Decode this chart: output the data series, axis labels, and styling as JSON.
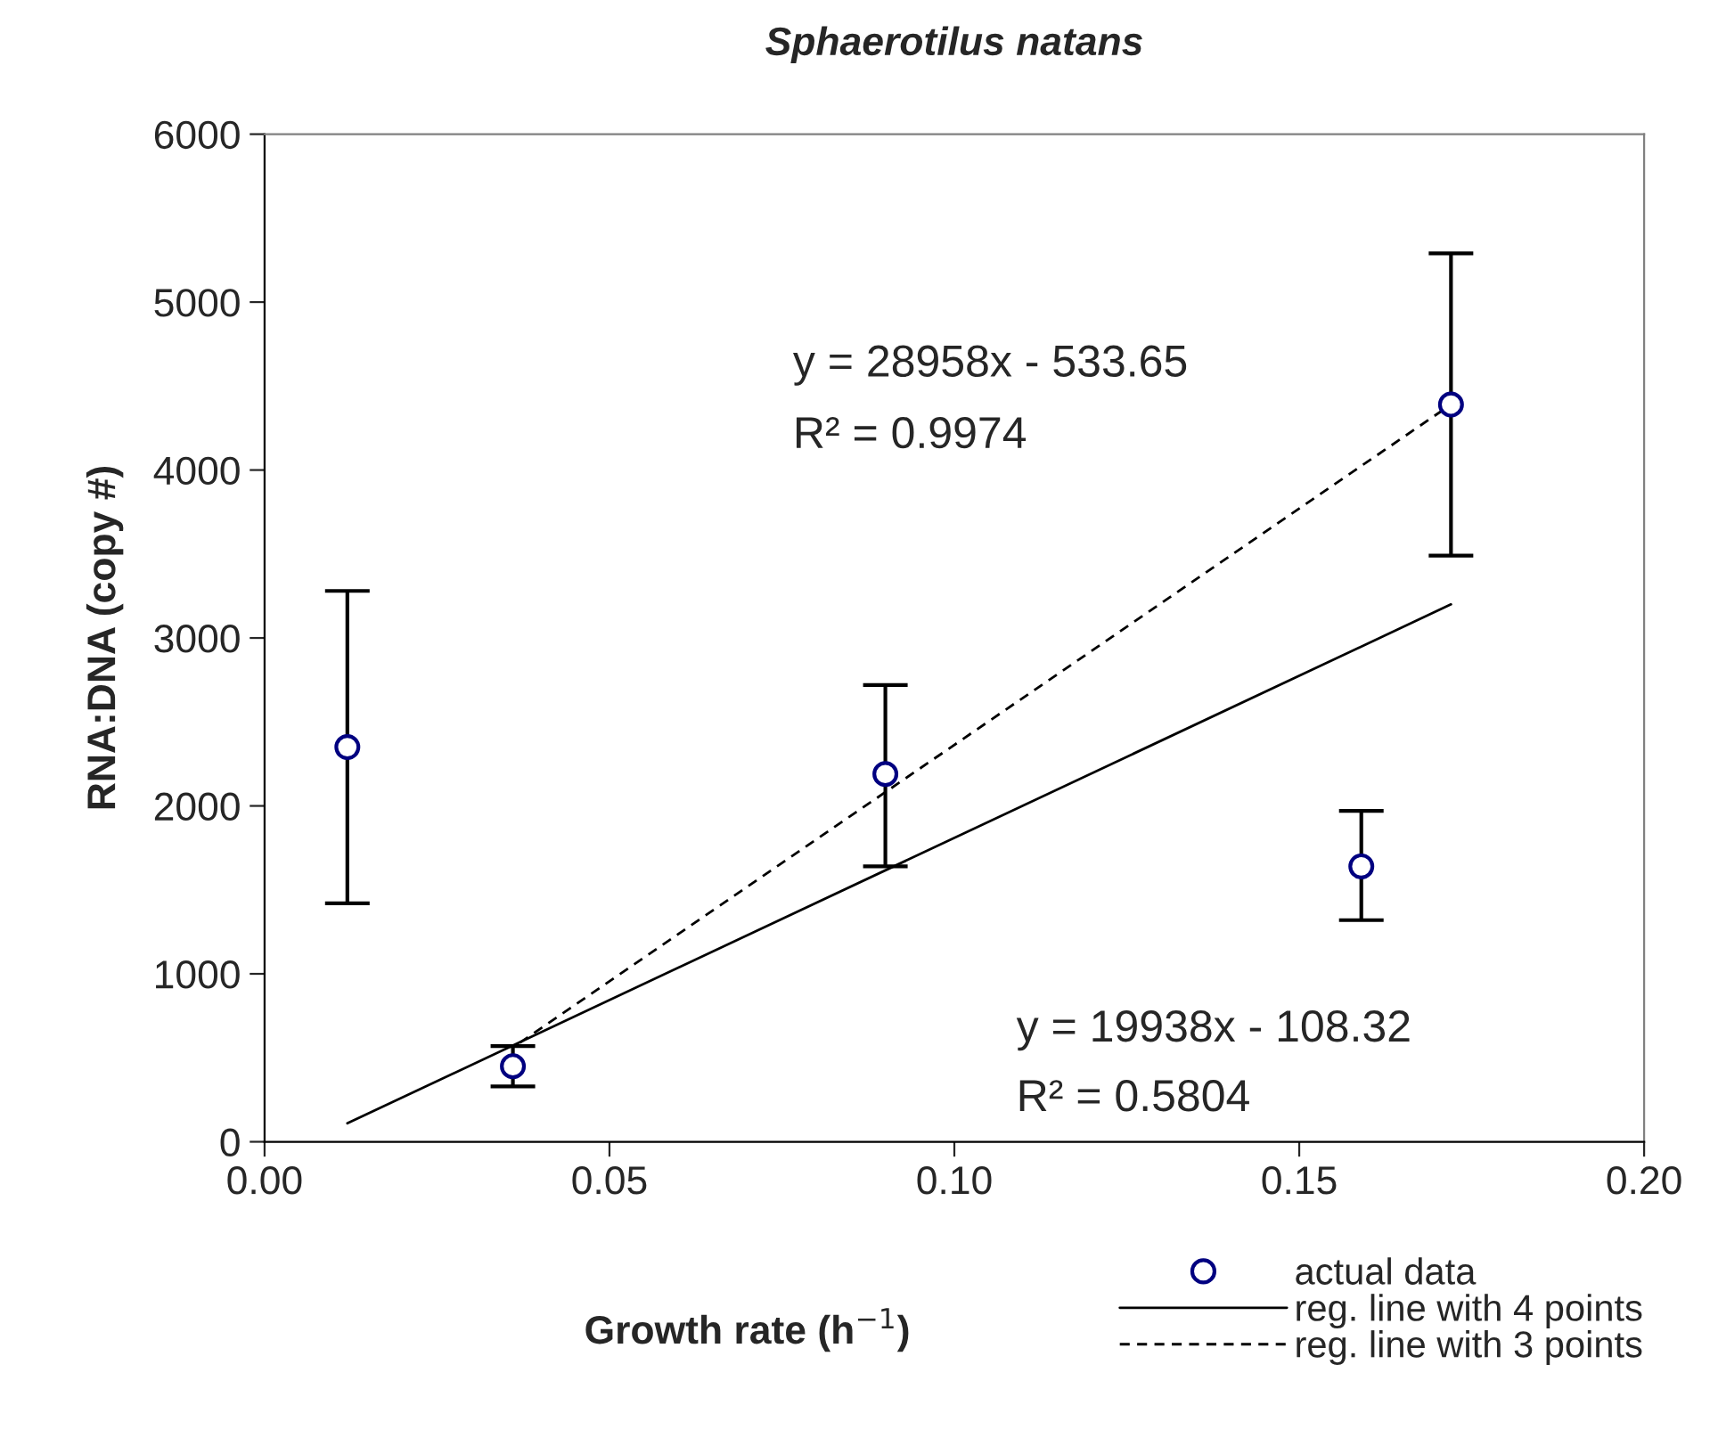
{
  "chart_data": {
    "type": "scatter",
    "title": "Sphaerotilus natans",
    "xlabel": "Growth rate (h$^{−1}$)",
    "ylabel": "RNA:DNA (copy #)",
    "xlim": [
      0,
      0.2
    ],
    "xticks": [
      {
        "value": 0,
        "label": "0.00"
      },
      {
        "value": 0.05,
        "label": "0.05"
      },
      {
        "value": 0.1,
        "label": "0.10"
      },
      {
        "value": 0.15,
        "label": "0.15"
      },
      {
        "value": 0.2,
        "label": "0.20"
      }
    ],
    "ylim": [
      0,
      6000
    ],
    "yticks": [
      0,
      1000,
      2000,
      3000,
      4000,
      5000,
      6000
    ],
    "series": [
      {
        "name": "actual data",
        "color": "#000080",
        "marker": "circle",
        "x": [
          0.012,
          0.036,
          0.09,
          0.159,
          0.172
        ],
        "values": [
          2350,
          450,
          2190,
          1640,
          4390
        ],
        "errors": [
          [
            1420,
            3280
          ],
          [
            330,
            570
          ],
          [
            1640,
            2720
          ],
          [
            1320,
            1970
          ],
          [
            3490,
            5290
          ]
        ]
      },
      {
        "name": "reg. line with 4 points",
        "type": "line",
        "color": "#000000",
        "line_style": "solid",
        "x": [
          0.012,
          0.172
        ],
        "values": [
          110,
          3200
        ]
      },
      {
        "name": "reg. line with 3 points",
        "type": "line",
        "color": "#000000",
        "line_style": "dashed",
        "x": [
          0.037,
          0.172
        ],
        "values": [
          590,
          4390
        ]
      }
    ],
    "annotations": [
      "y = 28958x - 533.65",
      "R² = 0.9974",
      "y = 19938x - 108.32",
      "R² = 0.5804"
    ],
    "grid": false,
    "legend": "bottom right"
  }
}
